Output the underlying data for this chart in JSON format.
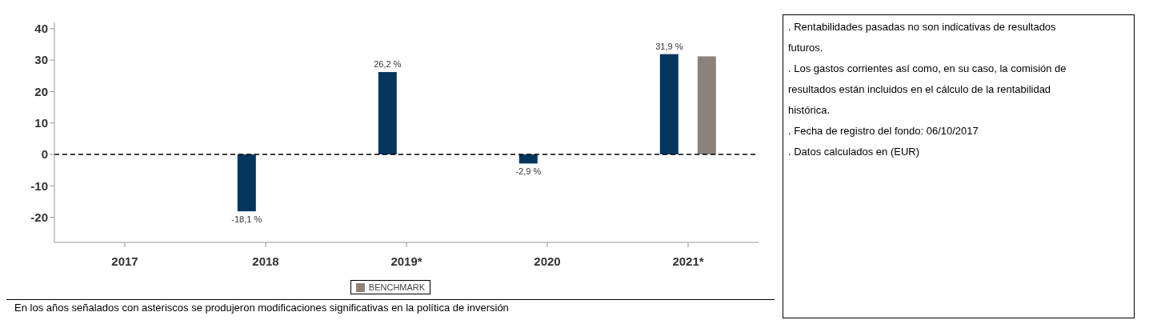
{
  "chart_data": {
    "type": "bar",
    "categories": [
      "2017",
      "2018",
      "2019*",
      "2020",
      "2021*"
    ],
    "series": [
      {
        "color": "#03375f",
        "values": [
          null,
          -18.1,
          26.2,
          -2.9,
          31.9
        ],
        "value_labels": [
          null,
          "-18,1 %",
          "26,2 %",
          "-2,9 %",
          "31,9 %"
        ]
      },
      {
        "name": "BENCHMARK",
        "color": "#8c8279",
        "values": [
          null,
          null,
          null,
          null,
          31.2
        ]
      }
    ],
    "ylim": [
      -28,
      42
    ],
    "yticks": [
      -20,
      -10,
      0,
      10,
      20,
      30,
      40
    ],
    "ref_lines": [
      {
        "axis": "y",
        "value": 0,
        "color": "#000000",
        "line_style": "dashed"
      }
    ],
    "legend": "bottom",
    "grid": false,
    "annotations": [
      ". Rentabilidades pasadas no son indicativas de resultados futuros.",
      ". Los gastos corrientes así como, en su caso, la comisión de resultados están incluidos en el cálculo de la rentabilidad histórica.",
      ". Fecha de registro del fondo: 06/10/2017",
      ". Datos calculados en (EUR)",
      "En los años señalados con asteriscos se produjeron modificaciones significativas en la política de inversión"
    ]
  }
}
